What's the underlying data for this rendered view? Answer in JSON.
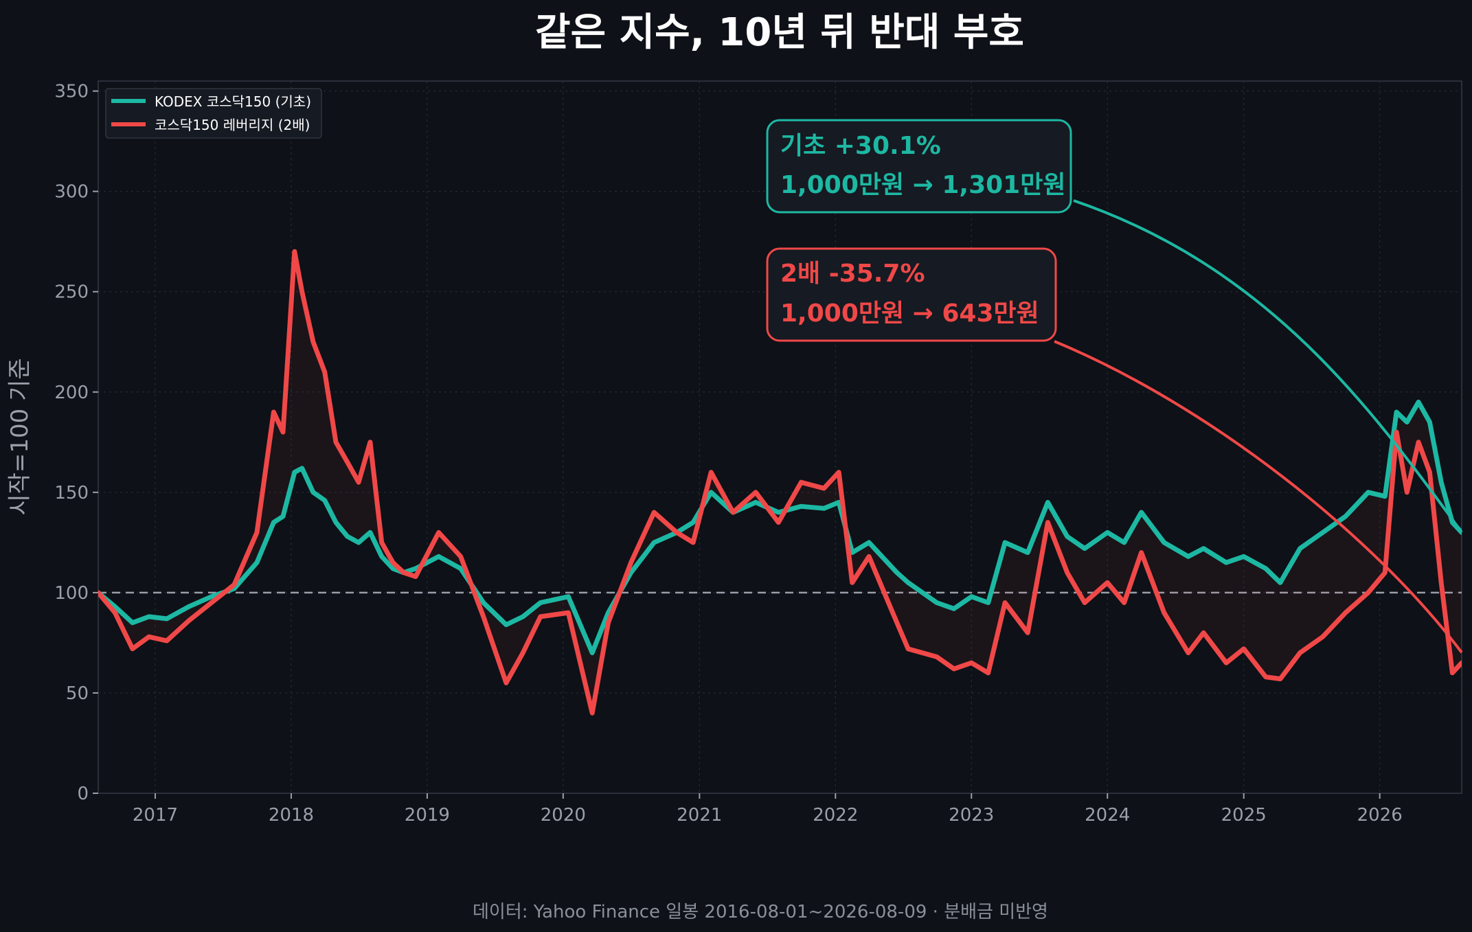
{
  "chart_data": {
    "type": "line",
    "title": "같은 지수, 10년 뒤 반대 부호",
    "ylabel": "시작=100 기준",
    "xlabel": "",
    "footer": "데이터: Yahoo Finance 일봉 2016-08-01~2026-08-09 · 분배금 미반영",
    "ylim": [
      0,
      355
    ],
    "xlim": [
      "2016-08-01",
      "2026-08-09"
    ],
    "yticks": [
      "0",
      "50",
      "100",
      "150",
      "200",
      "250",
      "300",
      "350"
    ],
    "xticks": [
      "2017",
      "2018",
      "2019",
      "2020",
      "2021",
      "2022",
      "2023",
      "2024",
      "2025",
      "2026"
    ],
    "grid": true,
    "baseline": 100,
    "legend_position": "top-left",
    "colors": {
      "background": "#0e1117",
      "base": "#1db8a3",
      "lever": "#f04848",
      "grid": "#2a2f3a",
      "baseline": "#9aa0aa"
    },
    "series": [
      {
        "name": "KODEX 코스닥150 (기초)",
        "color": "#1db8a3",
        "x": [
          "2016-08-01",
          "2016-09-15",
          "2016-11-01",
          "2016-12-15",
          "2017-02-01",
          "2017-04-01",
          "2017-06-01",
          "2017-08-01",
          "2017-10-01",
          "2017-11-15",
          "2017-12-10",
          "2018-01-10",
          "2018-01-30",
          "2018-03-01",
          "2018-04-01",
          "2018-05-01",
          "2018-06-01",
          "2018-07-01",
          "2018-08-01",
          "2018-09-01",
          "2018-10-01",
          "2018-10-30",
          "2018-12-01",
          "2019-02-01",
          "2019-04-01",
          "2019-06-01",
          "2019-08-01",
          "2019-09-15",
          "2019-11-01",
          "2020-01-15",
          "2020-03-19",
          "2020-05-01",
          "2020-07-01",
          "2020-09-01",
          "2020-11-01",
          "2020-12-15",
          "2021-02-01",
          "2021-04-01",
          "2021-06-01",
          "2021-08-01",
          "2021-10-01",
          "2021-12-01",
          "2022-01-10",
          "2022-02-15",
          "2022-04-01",
          "2022-06-15",
          "2022-07-15",
          "2022-09-30",
          "2022-11-15",
          "2023-01-01",
          "2023-02-15",
          "2023-04-01",
          "2023-06-01",
          "2023-07-25",
          "2023-09-15",
          "2023-11-01",
          "2024-01-01",
          "2024-02-15",
          "2024-04-01",
          "2024-06-01",
          "2024-08-05",
          "2024-09-15",
          "2024-11-15",
          "2025-01-01",
          "2025-03-01",
          "2025-04-09",
          "2025-06-01",
          "2025-08-01",
          "2025-10-01",
          "2025-12-01",
          "2026-01-15",
          "2026-02-15",
          "2026-03-15",
          "2026-04-15",
          "2026-05-15",
          "2026-06-15",
          "2026-07-15",
          "2026-08-09"
        ],
        "values": [
          100,
          93,
          85,
          88,
          87,
          93,
          98,
          102,
          115,
          135,
          138,
          160,
          162,
          150,
          146,
          135,
          128,
          125,
          130,
          118,
          112,
          110,
          112,
          118,
          112,
          95,
          84,
          88,
          95,
          98,
          70,
          90,
          110,
          125,
          130,
          135,
          150,
          140,
          145,
          140,
          143,
          142,
          145,
          120,
          125,
          110,
          105,
          95,
          92,
          98,
          95,
          125,
          120,
          145,
          128,
          122,
          130,
          125,
          140,
          125,
          118,
          122,
          115,
          118,
          112,
          105,
          122,
          130,
          138,
          150,
          148,
          190,
          185,
          195,
          185,
          155,
          135,
          130
        ]
      },
      {
        "name": "코스닥150 레버리지 (2배)",
        "color": "#f04848",
        "x": [
          "2016-08-01",
          "2016-09-15",
          "2016-11-01",
          "2016-12-15",
          "2017-02-01",
          "2017-04-01",
          "2017-06-01",
          "2017-08-01",
          "2017-10-01",
          "2017-11-15",
          "2017-12-10",
          "2018-01-10",
          "2018-01-30",
          "2018-03-01",
          "2018-04-01",
          "2018-05-01",
          "2018-06-01",
          "2018-07-01",
          "2018-08-01",
          "2018-09-01",
          "2018-10-01",
          "2018-10-30",
          "2018-12-01",
          "2019-02-01",
          "2019-04-01",
          "2019-06-01",
          "2019-08-01",
          "2019-09-15",
          "2019-11-01",
          "2020-01-15",
          "2020-03-19",
          "2020-05-01",
          "2020-07-01",
          "2020-09-01",
          "2020-11-01",
          "2020-12-15",
          "2021-02-01",
          "2021-04-01",
          "2021-06-01",
          "2021-08-01",
          "2021-10-01",
          "2021-12-01",
          "2022-01-10",
          "2022-02-15",
          "2022-04-01",
          "2022-06-15",
          "2022-07-15",
          "2022-09-30",
          "2022-11-15",
          "2023-01-01",
          "2023-02-15",
          "2023-04-01",
          "2023-06-01",
          "2023-07-25",
          "2023-09-15",
          "2023-11-01",
          "2024-01-01",
          "2024-02-15",
          "2024-04-01",
          "2024-06-01",
          "2024-08-05",
          "2024-09-15",
          "2024-11-15",
          "2025-01-01",
          "2025-03-01",
          "2025-04-09",
          "2025-06-01",
          "2025-08-01",
          "2025-10-01",
          "2025-12-01",
          "2026-01-15",
          "2026-02-15",
          "2026-03-15",
          "2026-04-15",
          "2026-05-15",
          "2026-06-15",
          "2026-07-15",
          "2026-08-09"
        ],
        "values": [
          100,
          90,
          72,
          78,
          76,
          86,
          95,
          104,
          130,
          190,
          180,
          270,
          250,
          225,
          210,
          175,
          165,
          155,
          175,
          125,
          115,
          110,
          108,
          130,
          118,
          88,
          55,
          70,
          88,
          90,
          40,
          85,
          115,
          140,
          130,
          125,
          160,
          140,
          150,
          135,
          155,
          152,
          160,
          105,
          118,
          85,
          72,
          68,
          62,
          65,
          60,
          95,
          80,
          135,
          110,
          95,
          105,
          95,
          120,
          90,
          70,
          80,
          65,
          72,
          58,
          57,
          70,
          78,
          90,
          100,
          110,
          180,
          150,
          175,
          160,
          105,
          60,
          65
        ]
      }
    ]
  },
  "legend": {
    "items": [
      {
        "label": "KODEX 코스닥150 (기초)",
        "color": "#1db8a3"
      },
      {
        "label": "코스닥150 레버리지 (2배)",
        "color": "#f04848"
      }
    ]
  },
  "annotations": {
    "base": {
      "line1": "기초  +30.1%",
      "line2": "1,000만원 → 1,301만원",
      "color": "#1db8a3"
    },
    "lever": {
      "line1": "2배  -35.7%",
      "line2": "1,000만원 → 643만원",
      "color": "#f04848"
    }
  }
}
